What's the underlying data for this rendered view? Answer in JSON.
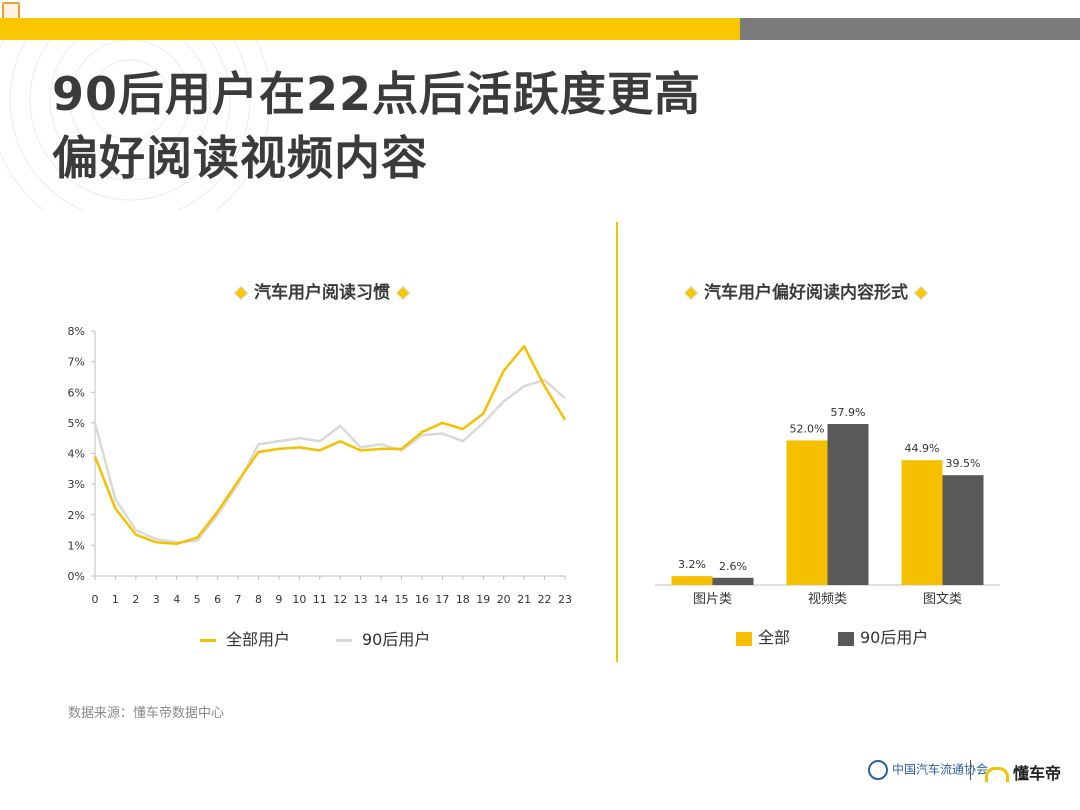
{
  "title_line1": "90后用户在22点后活跃度更高",
  "title_line2": "偏好阅读视频内容",
  "source": "数据来源：懂车帝数据中心",
  "footer": {
    "org": "中国汽车流通协会",
    "brand": "懂车帝"
  },
  "colors": {
    "yellow": "#f5c000",
    "gray_light": "#d9d9d9",
    "gray_dark": "#595959",
    "accent_band": "#f8c700"
  },
  "chart_data": [
    {
      "type": "line",
      "title": "汽车用户阅读习惯",
      "x": [
        "0",
        "1",
        "2",
        "3",
        "4",
        "5",
        "6",
        "7",
        "8",
        "9",
        "10",
        "11",
        "12",
        "13",
        "14",
        "15",
        "16",
        "17",
        "18",
        "19",
        "20",
        "21",
        "22",
        "23"
      ],
      "yticks": [
        "0%",
        "1%",
        "2%",
        "3%",
        "4%",
        "5%",
        "6%",
        "7%",
        "8%"
      ],
      "ylim": [
        0,
        8
      ],
      "series": [
        {
          "name": "全部用户",
          "color": "#f5c000",
          "values": [
            3.9,
            2.2,
            1.35,
            1.1,
            1.05,
            1.25,
            2.1,
            3.1,
            4.05,
            4.15,
            4.2,
            4.1,
            4.4,
            4.1,
            4.15,
            4.15,
            4.7,
            5.0,
            4.8,
            5.3,
            6.7,
            7.5,
            6.2,
            5.1
          ]
        },
        {
          "name": "90后用户",
          "color": "#d9d9d9",
          "values": [
            5.0,
            2.5,
            1.5,
            1.2,
            1.1,
            1.15,
            2.0,
            3.0,
            4.3,
            4.4,
            4.5,
            4.4,
            4.9,
            4.2,
            4.3,
            4.1,
            4.6,
            4.65,
            4.4,
            5.0,
            5.7,
            6.2,
            6.4,
            5.8
          ]
        }
      ]
    },
    {
      "type": "bar",
      "title": "汽车用户偏好阅读内容形式",
      "categories": [
        "图片类",
        "视频类",
        "图文类"
      ],
      "ylim": [
        0,
        70
      ],
      "series": [
        {
          "name": "全部",
          "color": "#f5c000",
          "values": [
            3.2,
            52.0,
            44.9
          ],
          "labels": [
            "3.2%",
            "52.0%",
            "44.9%"
          ]
        },
        {
          "name": "90后用户",
          "color": "#595959",
          "values": [
            2.6,
            57.9,
            39.5
          ],
          "labels": [
            "2.6%",
            "57.9%",
            "39.5%"
          ]
        }
      ]
    }
  ]
}
